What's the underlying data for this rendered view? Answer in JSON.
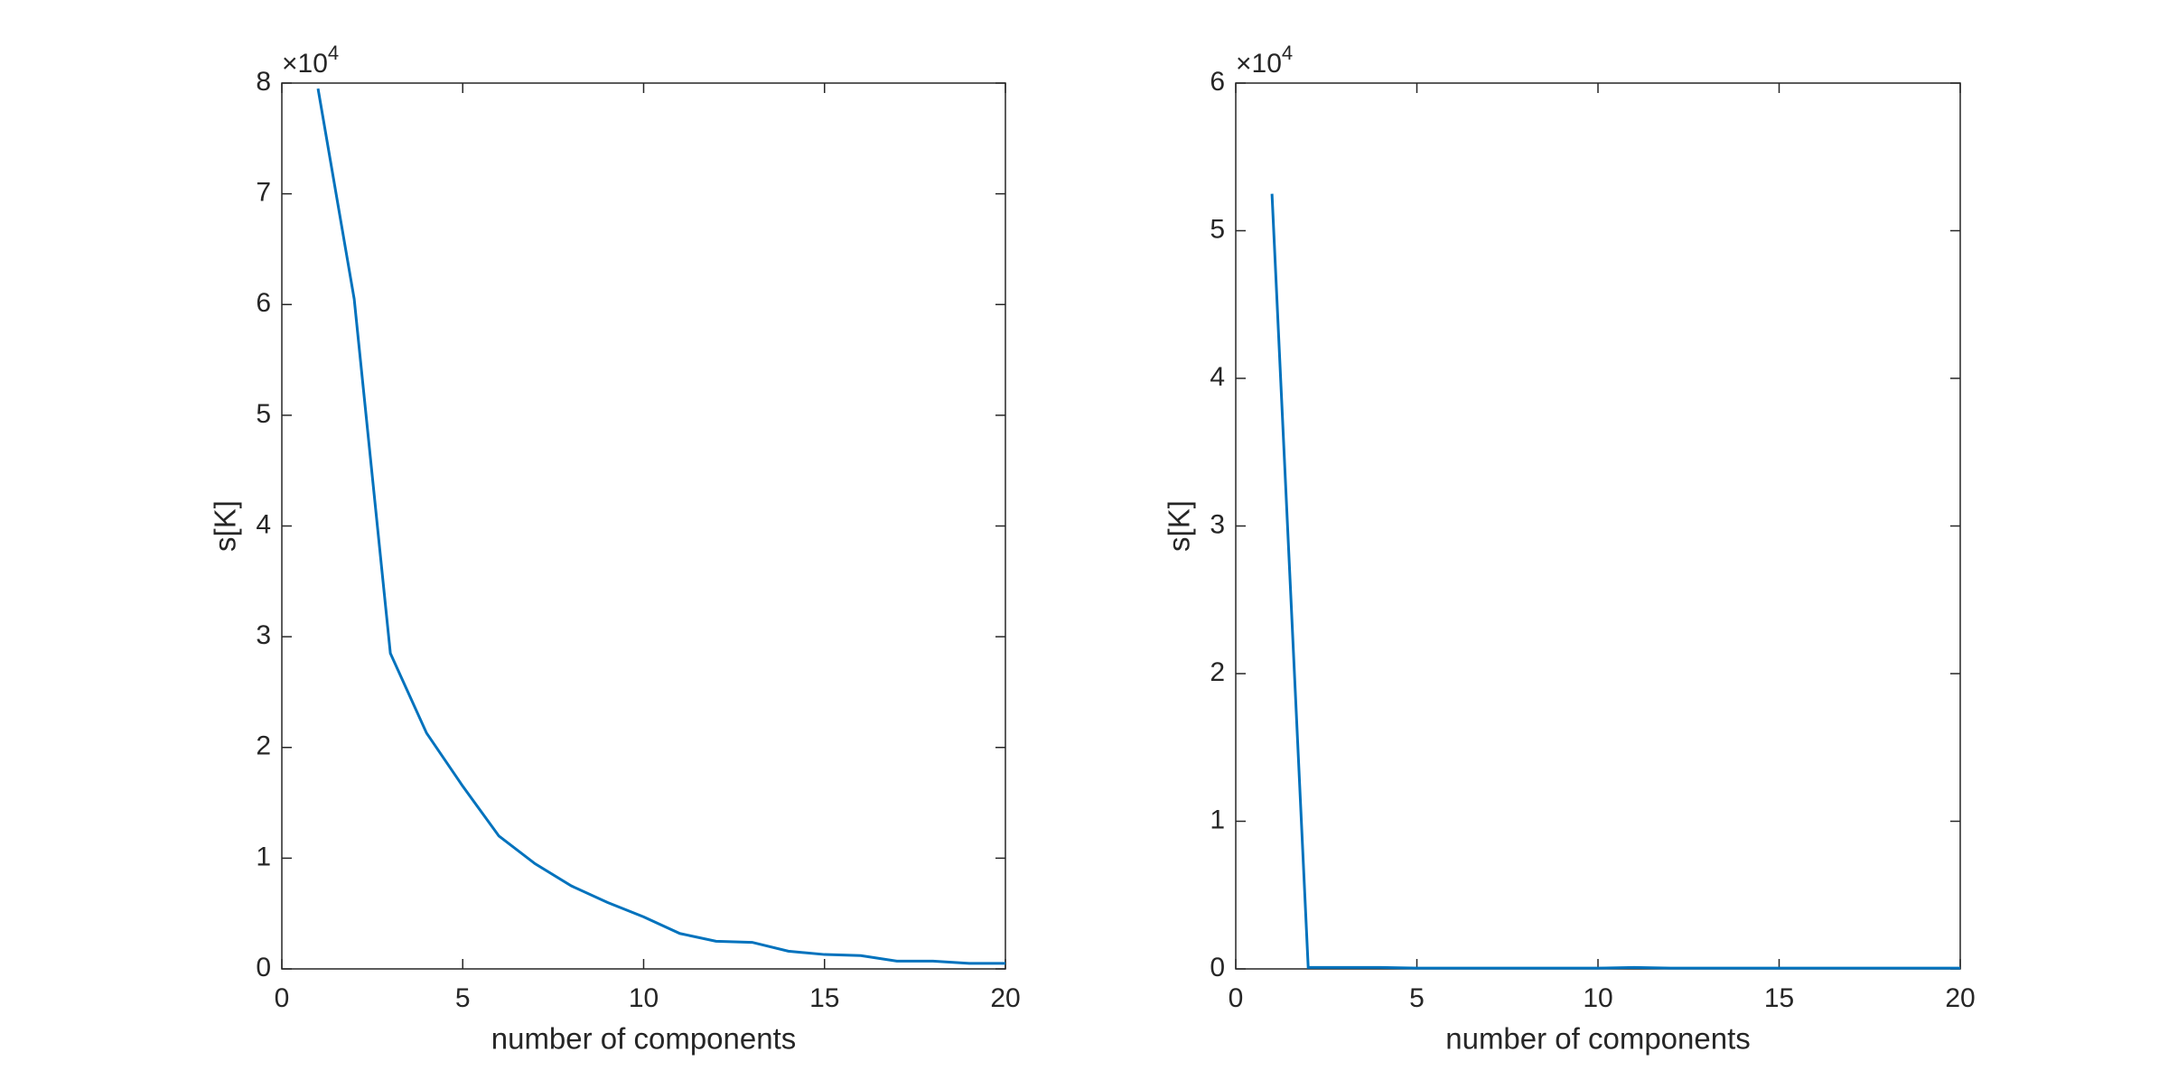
{
  "chart_data": [
    {
      "type": "line",
      "xlabel": "number of components",
      "ylabel": "s[K]",
      "multiplier": "×10",
      "multiplier_exponent": "4",
      "x": [
        1,
        2,
        3,
        4,
        5,
        6,
        7,
        8,
        9,
        10,
        11,
        12,
        13,
        14,
        15,
        16,
        17,
        18,
        19,
        20
      ],
      "values": [
        7.95,
        6.05,
        2.85,
        2.13,
        1.65,
        1.2,
        0.95,
        0.75,
        0.6,
        0.47,
        0.32,
        0.25,
        0.24,
        0.16,
        0.13,
        0.12,
        0.07,
        0.07,
        0.05,
        0.05
      ],
      "color": "#0072bd",
      "xlim": [
        0,
        20
      ],
      "xticks": [
        0,
        5,
        10,
        15,
        20
      ],
      "ylim": [
        0,
        8
      ],
      "yticks": [
        0,
        1,
        2,
        3,
        4,
        5,
        6,
        7,
        8
      ]
    },
    {
      "type": "line",
      "xlabel": "number of components",
      "ylabel": "s[K]",
      "multiplier": "×10",
      "multiplier_exponent": "4",
      "x": [
        1,
        2,
        3,
        4,
        5,
        6,
        7,
        8,
        9,
        10,
        11,
        12,
        13,
        14,
        15,
        16,
        17,
        18,
        19,
        20
      ],
      "values": [
        5.25,
        0.01,
        0.01,
        0.01,
        0.005,
        0.005,
        0.005,
        0.005,
        0.005,
        0.005,
        0.01,
        0.005,
        0.005,
        0.005,
        0.005,
        0.005,
        0.005,
        0.005,
        0.005,
        0.005
      ],
      "color": "#0072bd",
      "xlim": [
        0,
        20
      ],
      "xticks": [
        0,
        5,
        10,
        15,
        20
      ],
      "ylim": [
        0,
        6
      ],
      "yticks": [
        0,
        1,
        2,
        3,
        4,
        5,
        6
      ]
    }
  ]
}
